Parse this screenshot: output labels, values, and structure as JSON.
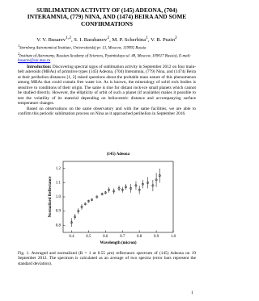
{
  "title": "SUBLIMATION ACTIVITY OF (145) ADEONA, (704) INTERAMNIA, (779) NINA, AND (1474) BEIRA AND SOME CONFIRMATIONS",
  "authors": [
    {
      "name": "V. V. Busarev",
      "sup": "1,2"
    },
    {
      "name": "S. I. Barabanov",
      "sup": "2"
    },
    {
      "name": "M. P. Scherbina",
      "sup": "1"
    },
    {
      "name": "V. B. Puzin",
      "sup": "2"
    }
  ],
  "affiliations": [
    {
      "sup": "1",
      "text": "Sternberg Astronomical Institute, Universitetskij pr. 13, Moscow, 119992 Russia"
    },
    {
      "sup": "2",
      "text": "Institute of Astronomy, Russian Academy of Sciences, Pyatnitskaya ul. 48, Moscow, 109017 Russia), E-mail:"
    }
  ],
  "email": "busarev@sai.msu.ru",
  "intro_heading": "Introduction:",
  "paragraphs": [
    "Discovering spectral signs of sublimation activity in September 2012 on four main-belt asteroids (MBAs) of primitive types (145) Adeona, (704) Interamnia, (779) Nina, and (1474) Beira at their perihelion distances [1, 2] raised questions about the probable mass nature of this phenomenon among MBAs that could contain free water ice. As is known, the mineralogy of solid rock bodies is sensitive to conditions of their origin. The same is true for distant rock-ice small planets which cannot be studied directly. However, the ellipticity of orbit of such a planet (if available) makes it possible to test the volatility of its material depending on heliocentric distance and accompanying surface temperature changes.",
    "Based on observations on the same observatory and with the same facilities, we are able to confirm this periodic sublimation process on Nina as it approached perihelion in September 2016."
  ],
  "chart_data": {
    "type": "scatter",
    "title": "(145) Adeona",
    "x_label": "Wavelength (micron)",
    "y_label": "Normalized Reflectance",
    "x": [
      0.4,
      0.42,
      0.44,
      0.46,
      0.48,
      0.5,
      0.52,
      0.55,
      0.58,
      0.6,
      0.62,
      0.65,
      0.68,
      0.7,
      0.72,
      0.75,
      0.78,
      0.8,
      0.82,
      0.85,
      0.88,
      0.9,
      0.92
    ],
    "series": [
      {
        "values": [
          0.82,
          0.86,
          0.9,
          0.93,
          0.95,
          0.97,
          0.98,
          1.0,
          1.02,
          1.03,
          1.05,
          1.04,
          1.06,
          1.05,
          1.07,
          1.06,
          1.08,
          1.05,
          1.09,
          1.1,
          1.08,
          1.12,
          1.15
        ],
        "errors": [
          0.03,
          0.02,
          0.02,
          0.02,
          0.01,
          0.01,
          0.01,
          0.01,
          0.01,
          0.01,
          0.02,
          0.02,
          0.02,
          0.02,
          0.02,
          0.03,
          0.03,
          0.03,
          0.03,
          0.04,
          0.04,
          0.05,
          0.05
        ],
        "color": "#000000"
      }
    ],
    "xlim": [
      0.35,
      1.0
    ],
    "xticks": [
      0.4,
      0.5,
      0.6,
      0.7,
      0.8,
      0.9,
      {
        "value": 1,
        "label": "1.0"
      }
    ],
    "ylim": [
      0.75,
      1.25
    ],
    "yticks": [
      0.8,
      0.9,
      {
        "value": 1,
        "label": "1.0"
      },
      1.1,
      1.2
    ]
  },
  "caption": "Fig. 1. Averaged and normalized (R = 1 at 0.55 μm) reflectance spectrum of (145) Adeona on 19 September 2012. The spectrum is calculated as an average of two spectra (error bars represent the standard deviation).",
  "page_number": "1"
}
